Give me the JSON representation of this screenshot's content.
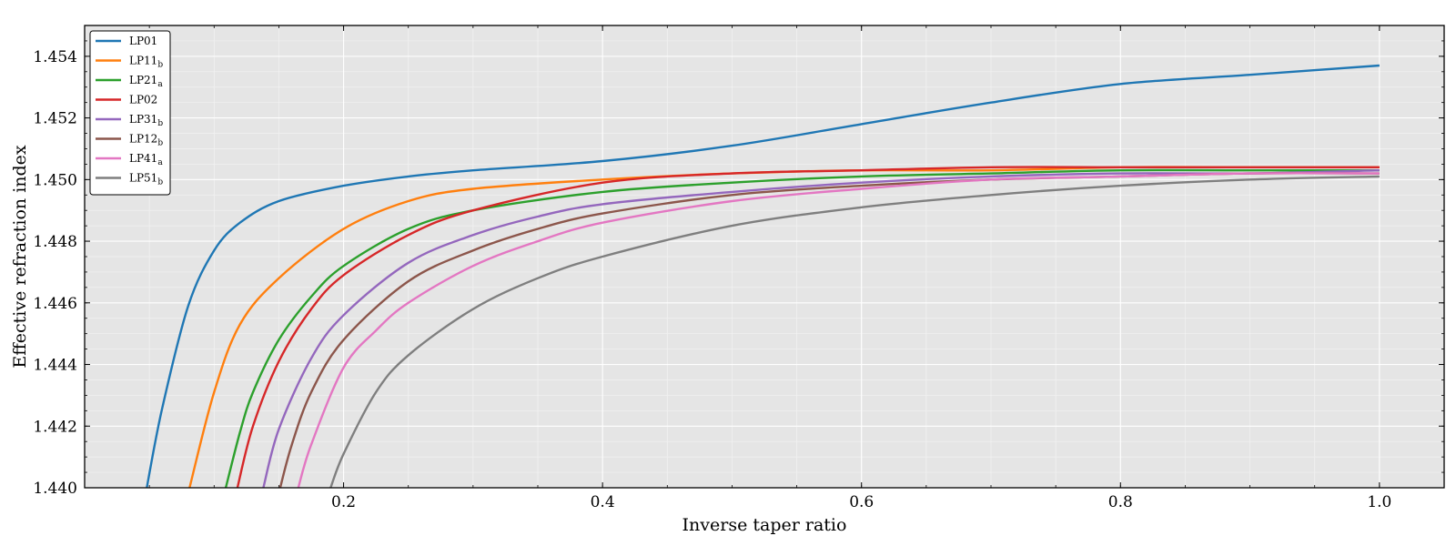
{
  "chart_data": {
    "type": "line",
    "title": "",
    "xlabel": "Inverse taper ratio",
    "ylabel": "Effective refraction index",
    "xlim": [
      0.0,
      1.05
    ],
    "ylim": [
      1.44,
      1.455
    ],
    "xticks": [
      0.2,
      0.4,
      0.6,
      0.8,
      1.0
    ],
    "xtick_labels": [
      "0.2",
      "0.4",
      "0.6",
      "0.8",
      "1.0"
    ],
    "yticks": [
      1.44,
      1.442,
      1.444,
      1.446,
      1.448,
      1.45,
      1.452,
      1.454
    ],
    "ytick_labels": [
      "1.440",
      "1.442",
      "1.444",
      "1.446",
      "1.448",
      "1.450",
      "1.452",
      "1.454"
    ],
    "grid": true,
    "legend_position": "top-left",
    "background": "#e5e5e5",
    "series": [
      {
        "name": "LP01",
        "sub": "",
        "color": "#1f77b4",
        "x": [
          0.048,
          0.06,
          0.08,
          0.1,
          0.12,
          0.15,
          0.2,
          0.25,
          0.3,
          0.4,
          0.5,
          0.6,
          0.7,
          0.8,
          0.9,
          1.0
        ],
        "y": [
          1.44,
          1.4426,
          1.4459,
          1.4477,
          1.4486,
          1.4493,
          1.4498,
          1.4501,
          1.4503,
          1.4506,
          1.4511,
          1.4518,
          1.4525,
          1.4531,
          1.4534,
          1.4537
        ]
      },
      {
        "name": "LP11",
        "sub": "b",
        "color": "#ff7f0e",
        "x": [
          0.081,
          0.1,
          0.12,
          0.15,
          0.2,
          0.25,
          0.3,
          0.4,
          0.5,
          0.6,
          0.7,
          0.8,
          0.9,
          1.0
        ],
        "y": [
          1.44,
          1.4431,
          1.4453,
          1.4468,
          1.4484,
          1.4493,
          1.4497,
          1.45,
          1.4502,
          1.4503,
          1.4503,
          1.4504,
          1.4504,
          1.4504
        ]
      },
      {
        "name": "LP21",
        "sub": "a",
        "color": "#2ca02c",
        "x": [
          0.109,
          0.12,
          0.13,
          0.15,
          0.175,
          0.2,
          0.25,
          0.3,
          0.4,
          0.5,
          0.6,
          0.7,
          0.8,
          0.9,
          1.0
        ],
        "y": [
          1.44,
          1.4418,
          1.4431,
          1.4448,
          1.4462,
          1.4472,
          1.4484,
          1.449,
          1.4496,
          1.4499,
          1.4501,
          1.4502,
          1.4503,
          1.4503,
          1.4503
        ]
      },
      {
        "name": "LP02",
        "sub": "",
        "color": "#d62728",
        "x": [
          0.118,
          0.13,
          0.15,
          0.175,
          0.2,
          0.25,
          0.3,
          0.4,
          0.5,
          0.6,
          0.7,
          0.8,
          0.9,
          1.0
        ],
        "y": [
          1.44,
          1.442,
          1.4441,
          1.4458,
          1.4469,
          1.4482,
          1.449,
          1.4499,
          1.4502,
          1.4503,
          1.4504,
          1.4504,
          1.4504,
          1.4504
        ]
      },
      {
        "name": "LP31",
        "sub": "b",
        "color": "#9467bd",
        "x": [
          0.138,
          0.15,
          0.175,
          0.2,
          0.25,
          0.3,
          0.35,
          0.4,
          0.5,
          0.6,
          0.7,
          0.8,
          0.9,
          1.0
        ],
        "y": [
          1.44,
          1.4419,
          1.4442,
          1.4456,
          1.4473,
          1.4482,
          1.4488,
          1.4492,
          1.4496,
          1.4499,
          1.4501,
          1.4502,
          1.4502,
          1.4503
        ]
      },
      {
        "name": "LP12",
        "sub": "b",
        "color": "#8c564b",
        "x": [
          0.151,
          0.16,
          0.175,
          0.2,
          0.25,
          0.3,
          0.35,
          0.4,
          0.5,
          0.6,
          0.7,
          0.8,
          0.9,
          1.0
        ],
        "y": [
          1.44,
          1.4414,
          1.4431,
          1.4448,
          1.4467,
          1.4477,
          1.4484,
          1.4489,
          1.4495,
          1.4498,
          1.45,
          1.4501,
          1.4502,
          1.4502
        ]
      },
      {
        "name": "LP41",
        "sub": "a",
        "color": "#e377c2",
        "x": [
          0.165,
          0.175,
          0.2,
          0.225,
          0.25,
          0.3,
          0.35,
          0.4,
          0.5,
          0.6,
          0.7,
          0.8,
          0.9,
          1.0
        ],
        "y": [
          1.44,
          1.4414,
          1.4439,
          1.4451,
          1.446,
          1.4472,
          1.448,
          1.4486,
          1.4493,
          1.4497,
          1.45,
          1.4501,
          1.4502,
          1.4502
        ]
      },
      {
        "name": "LP51",
        "sub": "b",
        "color": "#7f7f7f",
        "x": [
          0.19,
          0.2,
          0.225,
          0.25,
          0.3,
          0.35,
          0.4,
          0.5,
          0.6,
          0.7,
          0.8,
          0.9,
          1.0
        ],
        "y": [
          1.44,
          1.4411,
          1.4431,
          1.4443,
          1.4458,
          1.4468,
          1.4475,
          1.4485,
          1.4491,
          1.4495,
          1.4498,
          1.45,
          1.4501
        ]
      }
    ]
  }
}
